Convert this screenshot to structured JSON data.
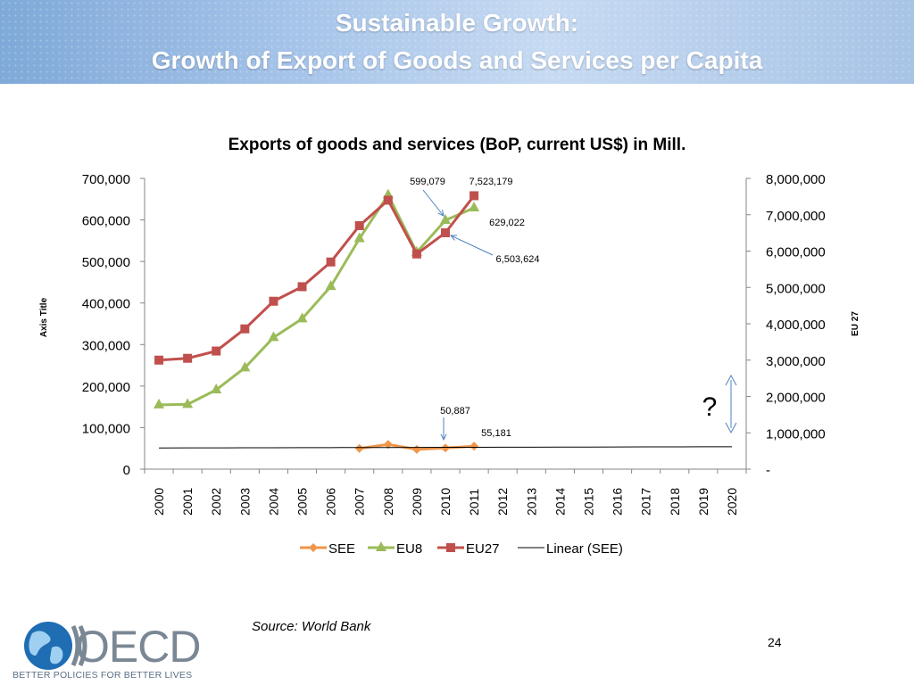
{
  "slide": {
    "title_line1": "Sustainable Growth:",
    "title_line2": "Growth of Export of Goods and Services per Capita",
    "source": "Source: World Bank",
    "page_number": "24",
    "logo_text": "OECD",
    "logo_tagline": "BETTER POLICIES FOR BETTER LIVES"
  },
  "chart_data": {
    "type": "line",
    "title": "Exports of goods and services (BoP, current US$) in Mill.",
    "categories": [
      "2000",
      "2001",
      "2002",
      "2003",
      "2004",
      "2005",
      "2006",
      "2007",
      "2008",
      "2009",
      "2010",
      "2011",
      "2012",
      "2013",
      "2014",
      "2015",
      "2016",
      "2017",
      "2018",
      "2019",
      "2020"
    ],
    "y_left": {
      "label": "Axis Title",
      "range": [
        0,
        700000
      ],
      "ticks": [
        "0",
        "100,000",
        "200,000",
        "300,000",
        "400,000",
        "500,000",
        "600,000",
        "700,000"
      ]
    },
    "y_right": {
      "label": "EU 27",
      "range": [
        0,
        8000000
      ],
      "ticks": [
        "-",
        "1,000,000",
        "2,000,000",
        "3,000,000",
        "4,000,000",
        "5,000,000",
        "6,000,000",
        "7,000,000",
        "8,000,000"
      ]
    },
    "series": [
      {
        "name": "SEE",
        "axis": "left",
        "color": "#f0964b",
        "marker": "diamond",
        "values": [
          null,
          null,
          null,
          null,
          null,
          null,
          null,
          50000,
          59500,
          47500,
          50887,
          55181,
          null,
          null,
          null,
          null,
          null,
          null,
          null,
          null,
          null
        ]
      },
      {
        "name": "EU8",
        "axis": "left",
        "color": "#9bbb59",
        "marker": "triangle",
        "values": [
          155000,
          156000,
          191000,
          244000,
          317000,
          362000,
          440000,
          555000,
          660000,
          522000,
          599079,
          629022,
          null,
          null,
          null,
          null,
          null,
          null,
          null,
          null,
          null
        ]
      },
      {
        "name": "EU27",
        "axis": "right",
        "color": "#c0504d",
        "marker": "square",
        "values": [
          3000000,
          3050000,
          3250000,
          3860000,
          4620000,
          5020000,
          5700000,
          6700000,
          7400000,
          5920000,
          6503624,
          7523179,
          null,
          null,
          null,
          null,
          null,
          null,
          null,
          null,
          null
        ]
      },
      {
        "name": "Linear (SEE)",
        "axis": "left",
        "color": "#000000",
        "marker": "none",
        "trend": true,
        "values": [
          51000,
          51150,
          51300,
          51450,
          51600,
          51750,
          51900,
          52050,
          52200,
          52350,
          52500,
          52650,
          52800,
          52950,
          53100,
          53250,
          53400,
          53550,
          53700,
          53850,
          54000
        ]
      }
    ],
    "data_labels": [
      {
        "text": "599,079",
        "series": "EU8",
        "x": "2010"
      },
      {
        "text": "7,523,179",
        "series": "EU27",
        "x": "2011"
      },
      {
        "text": "629,022",
        "series": "EU8",
        "x": "2011"
      },
      {
        "text": "6,503,624",
        "series": "EU27",
        "x": "2010"
      },
      {
        "text": "50,887",
        "series": "SEE",
        "x": "2010"
      },
      {
        "text": "55,181",
        "series": "SEE",
        "x": "2011"
      }
    ],
    "annotation": "?",
    "legend_position": "bottom"
  }
}
